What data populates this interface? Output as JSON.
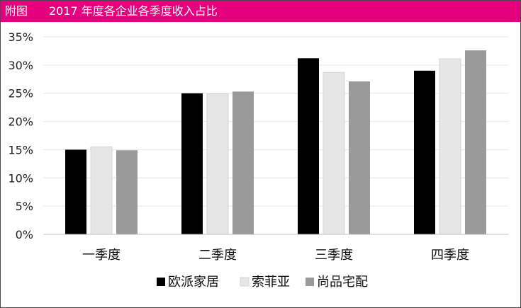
{
  "header": {
    "label": "附图",
    "title": "2017 年度各企业各季度收入占比"
  },
  "colors": {
    "header_bg": "#e4007f",
    "series": [
      "#000000",
      "#e6e6e6",
      "#9a9a9a"
    ]
  },
  "chart_data": {
    "type": "bar",
    "title": "2017 年度各企业各季度收入占比",
    "xlabel": "",
    "ylabel": "",
    "categories": [
      "一季度",
      "二季度",
      "三季度",
      "四季度"
    ],
    "series": [
      {
        "name": "欧派家居",
        "values": [
          15.0,
          25.0,
          31.2,
          29.0
        ]
      },
      {
        "name": "索菲亚",
        "values": [
          15.5,
          24.9,
          28.7,
          31.1
        ]
      },
      {
        "name": "尚品宅配",
        "values": [
          14.9,
          25.3,
          27.1,
          32.6
        ]
      }
    ],
    "ylim": [
      0,
      35
    ],
    "yticks": [
      "0%",
      "5%",
      "10%",
      "15%",
      "20%",
      "25%",
      "30%",
      "35%"
    ],
    "grid": true,
    "legend_position": "bottom"
  }
}
